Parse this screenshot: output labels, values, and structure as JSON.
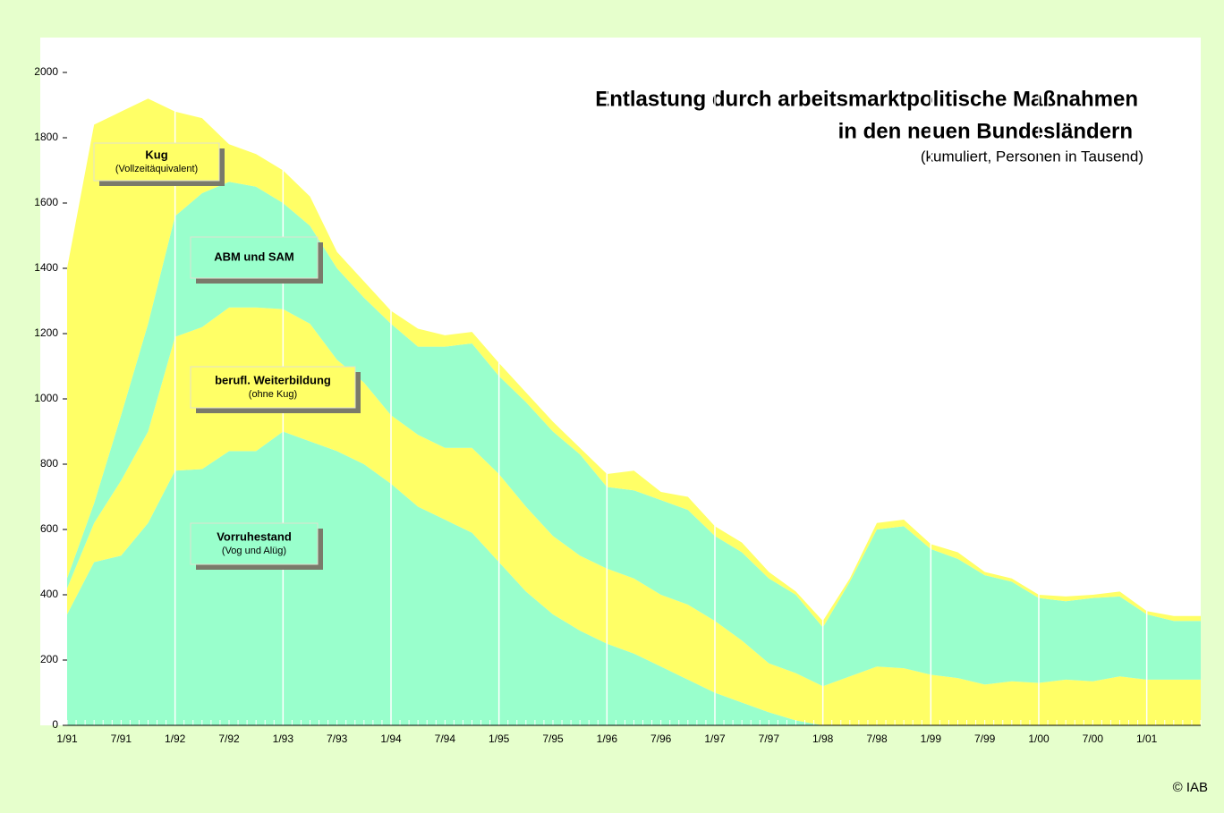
{
  "chart_data": {
    "type": "stacked_area",
    "title": [
      "Entlastung durch arbeitsmarktpolitische Maßnahmen",
      "in den neuen Bundesländern"
    ],
    "subtitle": "(kumuliert, Personen in Tausend)",
    "credit": "© IAB",
    "categories": [
      "1/91",
      null,
      "7/91",
      null,
      "1/92",
      null,
      "7/92",
      null,
      "1/93",
      null,
      "7/93",
      null,
      "1/94",
      null,
      "7/94",
      null,
      "1/95",
      null,
      "7/95",
      null,
      "1/96",
      null,
      "7/96",
      null,
      "1/97",
      null,
      "7/97",
      null,
      "1/98",
      null,
      "7/98",
      null,
      "1/99",
      null,
      "7/99",
      null,
      "1/00",
      null,
      "7/00",
      null,
      "1/01",
      null,
      null
    ],
    "series": [
      {
        "name": "Vorruhestand",
        "sublabel": "(Vog und Alüg)",
        "color": "#99ffcc",
        "values": [
          340,
          500,
          520,
          620,
          780,
          785,
          840,
          840,
          900,
          870,
          840,
          800,
          740,
          670,
          630,
          590,
          500,
          410,
          340,
          290,
          250,
          220,
          180,
          140,
          100,
          70,
          40,
          15,
          0,
          0,
          0,
          0,
          0,
          0,
          0,
          0,
          0,
          0,
          0,
          0,
          0,
          0,
          0
        ]
      },
      {
        "name": "berufl. Weiterbildung",
        "sublabel": "(ohne Kug)",
        "color": "#ffff66",
        "values": [
          80,
          120,
          230,
          280,
          410,
          435,
          440,
          440,
          375,
          360,
          280,
          250,
          210,
          220,
          220,
          260,
          270,
          260,
          240,
          230,
          230,
          230,
          220,
          230,
          220,
          190,
          150,
          145,
          120,
          150,
          180,
          175,
          155,
          145,
          125,
          135,
          130,
          140,
          135,
          150,
          140,
          140,
          140
        ]
      },
      {
        "name": "ABM und SAM",
        "color": "#99ffcc",
        "values": [
          30,
          60,
          200,
          330,
          370,
          410,
          385,
          370,
          325,
          300,
          280,
          260,
          280,
          270,
          310,
          320,
          300,
          320,
          320,
          310,
          250,
          270,
          290,
          290,
          260,
          270,
          260,
          240,
          180,
          290,
          420,
          435,
          385,
          365,
          335,
          305,
          260,
          240,
          255,
          245,
          200,
          180,
          180
        ]
      },
      {
        "name": "Kug",
        "sublabel": "(Vollzeitäquivalent)",
        "color": "#ffff66",
        "values": [
          950,
          1160,
          930,
          690,
          320,
          230,
          115,
          100,
          100,
          90,
          50,
          50,
          40,
          55,
          35,
          35,
          40,
          30,
          30,
          20,
          40,
          60,
          25,
          40,
          30,
          30,
          20,
          10,
          20,
          10,
          20,
          20,
          15,
          20,
          10,
          10,
          10,
          15,
          10,
          15,
          10,
          15,
          15
        ]
      }
    ],
    "ylim": [
      0,
      2000
    ],
    "yticks": [
      0,
      200,
      400,
      600,
      800,
      1000,
      1200,
      1400,
      1600,
      1800,
      2000
    ]
  }
}
